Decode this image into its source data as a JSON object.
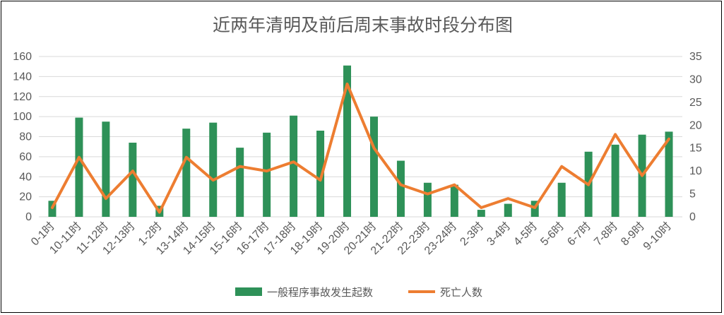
{
  "chart_data": {
    "type": "bar",
    "title": "近两年清明及前后周末事故时段分布图",
    "categories": [
      "0-1时",
      "10-11时",
      "11-12时",
      "12-13时",
      "1-2时",
      "13-14时",
      "14-15时",
      "15-16时",
      "16-17时",
      "17-18时",
      "18-19时",
      "19-20时",
      "20-21时",
      "21-22时",
      "22-23时",
      "23-24时",
      "2-3时",
      "3-4时",
      "4-5时",
      "5-6时",
      "6-7时",
      "7-8时",
      "8-9时",
      "9-10时"
    ],
    "series": [
      {
        "name": "一般程序事故发生起数",
        "axis": "left",
        "color": "#2e9158",
        "values": [
          16,
          99,
          95,
          74,
          11,
          88,
          94,
          69,
          84,
          101,
          86,
          151,
          100,
          56,
          34,
          32,
          7,
          13,
          16,
          34,
          65,
          72,
          82,
          85
        ]
      },
      {
        "name": "死亡人数",
        "axis": "right",
        "color": "#ed7d31",
        "values": [
          2,
          13,
          4,
          10,
          1,
          13,
          8,
          11,
          10,
          12,
          8,
          29,
          15,
          7,
          5,
          7,
          2,
          4,
          2,
          11,
          7,
          18,
          9,
          17
        ]
      }
    ],
    "ylim_left": [
      0,
      160
    ],
    "yticks_left": [
      "0",
      "20",
      "40",
      "60",
      "80",
      "100",
      "120",
      "140",
      "160"
    ],
    "ylim_right": [
      0,
      35
    ],
    "yticks_right": [
      "0",
      "5",
      "10",
      "15",
      "20",
      "25",
      "30",
      "35"
    ],
    "legend_position": "bottom",
    "grid": true
  }
}
